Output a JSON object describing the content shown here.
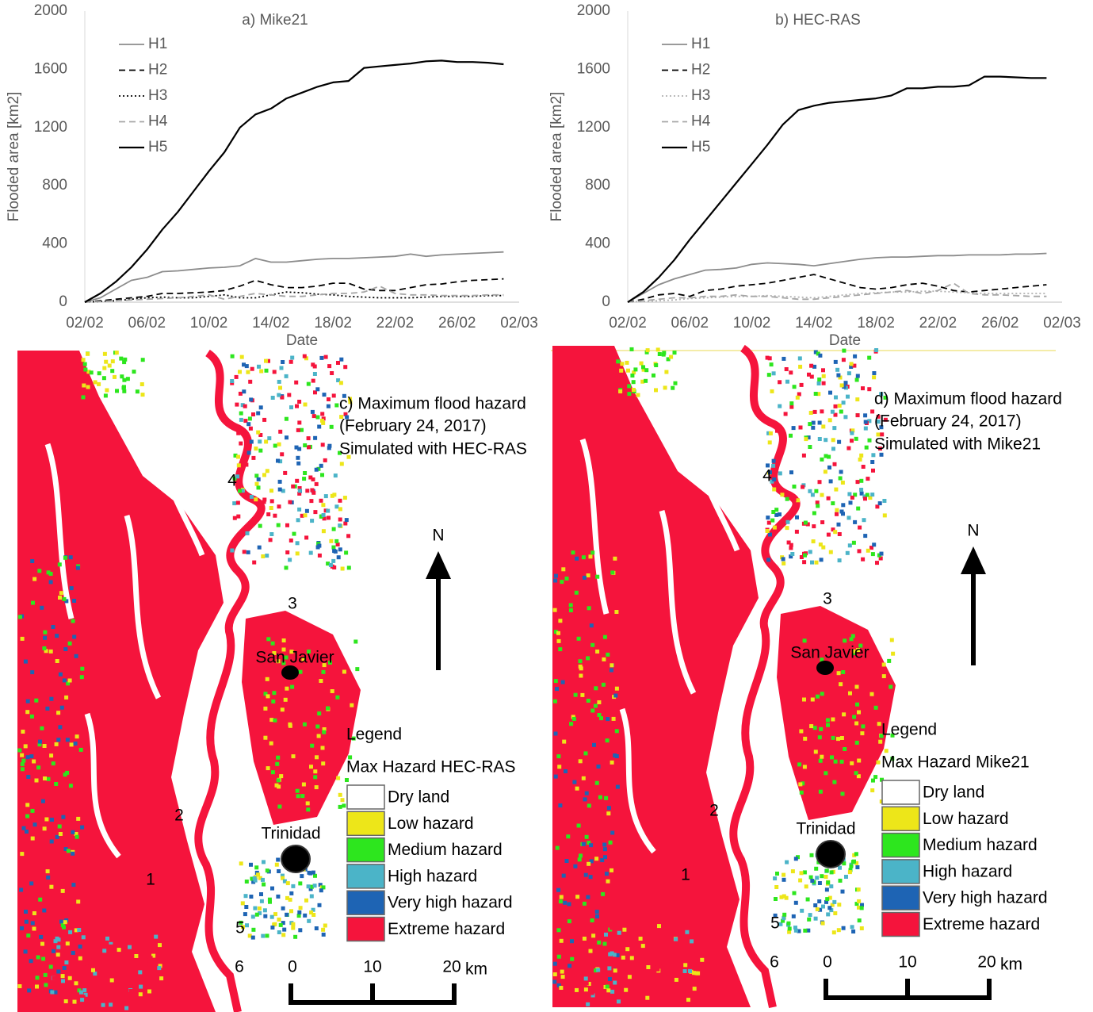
{
  "chart_data": [
    {
      "type": "line",
      "title": "a) Mike21",
      "y_label": "Flooded area [km2]",
      "x_label": "Date",
      "categories": [
        "02/02",
        null,
        null,
        null,
        "06/02",
        null,
        null,
        null,
        "10/02",
        null,
        null,
        null,
        "14/02",
        null,
        null,
        null,
        "18/02",
        null,
        null,
        null,
        "22/02",
        null,
        null,
        null,
        "26/02",
        null,
        null,
        null,
        "02/03"
      ],
      "ylim": [
        0,
        2000
      ],
      "yticks": [
        0,
        400,
        800,
        1200,
        1600,
        2000
      ],
      "series": [
        {
          "name": "H1",
          "color": "#8c8c8c",
          "dash": "solid",
          "values": [
            0,
            30,
            90,
            150,
            170,
            210,
            215,
            225,
            235,
            240,
            250,
            300,
            275,
            275,
            285,
            295,
            300,
            300,
            305,
            310,
            315,
            330,
            315,
            325,
            330,
            335,
            340,
            345,
            null
          ]
        },
        {
          "name": "H2",
          "color": "#000000",
          "dash": "dashed",
          "values": [
            0,
            10,
            20,
            30,
            40,
            60,
            60,
            65,
            70,
            80,
            110,
            150,
            120,
            100,
            100,
            110,
            130,
            130,
            90,
            80,
            80,
            100,
            120,
            125,
            140,
            150,
            155,
            160,
            null
          ]
        },
        {
          "name": "H3",
          "color": "#000000",
          "dash": "dotted",
          "values": [
            0,
            5,
            10,
            20,
            30,
            35,
            30,
            30,
            40,
            50,
            30,
            30,
            50,
            70,
            65,
            55,
            50,
            40,
            35,
            30,
            30,
            30,
            35,
            40,
            40,
            40,
            45,
            45,
            null
          ]
        },
        {
          "name": "H4",
          "color": "#a6a6a6",
          "dash": "dashed",
          "values": [
            0,
            5,
            10,
            15,
            20,
            25,
            30,
            40,
            50,
            20,
            40,
            60,
            50,
            40,
            40,
            50,
            60,
            60,
            70,
            110,
            60,
            50,
            50,
            45,
            45,
            45,
            50,
            50,
            null
          ]
        },
        {
          "name": "H5",
          "color": "#000000",
          "dash": "solid",
          "values": [
            0,
            60,
            140,
            240,
            360,
            500,
            620,
            760,
            900,
            1030,
            1200,
            1290,
            1330,
            1400,
            1440,
            1480,
            1510,
            1520,
            1610,
            1620,
            1630,
            1640,
            1655,
            1660,
            1650,
            1650,
            1645,
            1635,
            null
          ]
        }
      ]
    },
    {
      "type": "line",
      "title": "b) HEC-RAS",
      "y_label": "Flooded area [km2]",
      "x_label": "Date",
      "categories": [
        "02/02",
        null,
        null,
        null,
        "06/02",
        null,
        null,
        null,
        "10/02",
        null,
        null,
        null,
        "14/02",
        null,
        null,
        null,
        "18/02",
        null,
        null,
        null,
        "22/02",
        null,
        null,
        null,
        "26/02",
        null,
        null,
        null,
        "02/03"
      ],
      "ylim": [
        0,
        2000
      ],
      "yticks": [
        0,
        400,
        800,
        1200,
        1600,
        2000
      ],
      "series": [
        {
          "name": "H1",
          "color": "#8c8c8c",
          "dash": "solid",
          "values": [
            0,
            60,
            120,
            160,
            190,
            220,
            225,
            235,
            260,
            270,
            265,
            260,
            250,
            265,
            280,
            295,
            305,
            310,
            310,
            315,
            320,
            320,
            325,
            325,
            325,
            330,
            330,
            335,
            null
          ]
        },
        {
          "name": "H2",
          "color": "#000000",
          "dash": "dashed",
          "values": [
            0,
            20,
            50,
            60,
            40,
            80,
            90,
            110,
            120,
            130,
            150,
            170,
            190,
            160,
            130,
            100,
            90,
            100,
            120,
            130,
            110,
            80,
            70,
            80,
            90,
            100,
            110,
            120,
            null
          ]
        },
        {
          "name": "H3",
          "color": "#b0b0b0",
          "dash": "dotted",
          "values": [
            0,
            5,
            10,
            15,
            25,
            30,
            35,
            40,
            40,
            45,
            40,
            35,
            30,
            40,
            50,
            60,
            65,
            70,
            70,
            75,
            75,
            70,
            65,
            60,
            60,
            60,
            60,
            60,
            null
          ]
        },
        {
          "name": "H4",
          "color": "#a6a6a6",
          "dash": "dashed",
          "values": [
            0,
            10,
            20,
            30,
            30,
            40,
            40,
            50,
            40,
            40,
            30,
            20,
            20,
            30,
            40,
            50,
            60,
            70,
            80,
            60,
            80,
            130,
            60,
            50,
            50,
            45,
            40,
            40,
            null
          ]
        },
        {
          "name": "H5",
          "color": "#000000",
          "dash": "solid",
          "values": [
            0,
            70,
            170,
            290,
            430,
            560,
            690,
            820,
            950,
            1080,
            1220,
            1320,
            1350,
            1370,
            1380,
            1390,
            1400,
            1420,
            1470,
            1470,
            1480,
            1480,
            1490,
            1550,
            1550,
            1545,
            1540,
            1540,
            null
          ]
        }
      ]
    }
  ],
  "maps": [
    {
      "title_lines": [
        "c) Maximum flood hazard",
        "(February 24, 2017)",
        "Simulated with HEC-RAS"
      ],
      "markers": [
        "1",
        "2",
        "3",
        "4",
        "5",
        "6"
      ],
      "towns": [
        "San Javier",
        "Trinidad"
      ],
      "north": "N",
      "legend_title": "Legend",
      "legend_subtitle": "Max Hazard HEC-RAS",
      "legend_items": [
        {
          "label": "Dry land",
          "color": "#ffffff"
        },
        {
          "label": "Low hazard",
          "color": "#ede619"
        },
        {
          "label": "Medium hazard",
          "color": "#2de61e"
        },
        {
          "label": "High hazard",
          "color": "#4bb4c8"
        },
        {
          "label": "Very high hazard",
          "color": "#1e64b4"
        },
        {
          "label": "Extreme hazard",
          "color": "#f5143c"
        }
      ],
      "scale_labels": [
        0,
        10,
        20
      ],
      "scale_unit": "km"
    },
    {
      "title_lines": [
        "d) Maximum flood hazard",
        "(February 24, 2017)",
        "Simulated with Mike21"
      ],
      "markers": [
        "1",
        "2",
        "3",
        "4",
        "5",
        "6"
      ],
      "towns": [
        "San Javier",
        "Trinidad"
      ],
      "north": "N",
      "legend_title": "Legend",
      "legend_subtitle": "Max Hazard Mike21",
      "legend_items": [
        {
          "label": "Dry land",
          "color": "#ffffff"
        },
        {
          "label": "Low hazard",
          "color": "#ede619"
        },
        {
          "label": "Medium hazard",
          "color": "#2de61e"
        },
        {
          "label": "High hazard",
          "color": "#4bb4c8"
        },
        {
          "label": "Very high hazard",
          "color": "#1e64b4"
        },
        {
          "label": "Extreme hazard",
          "color": "#f5143c"
        }
      ],
      "scale_labels": [
        0,
        10,
        20
      ],
      "scale_unit": "km"
    }
  ]
}
